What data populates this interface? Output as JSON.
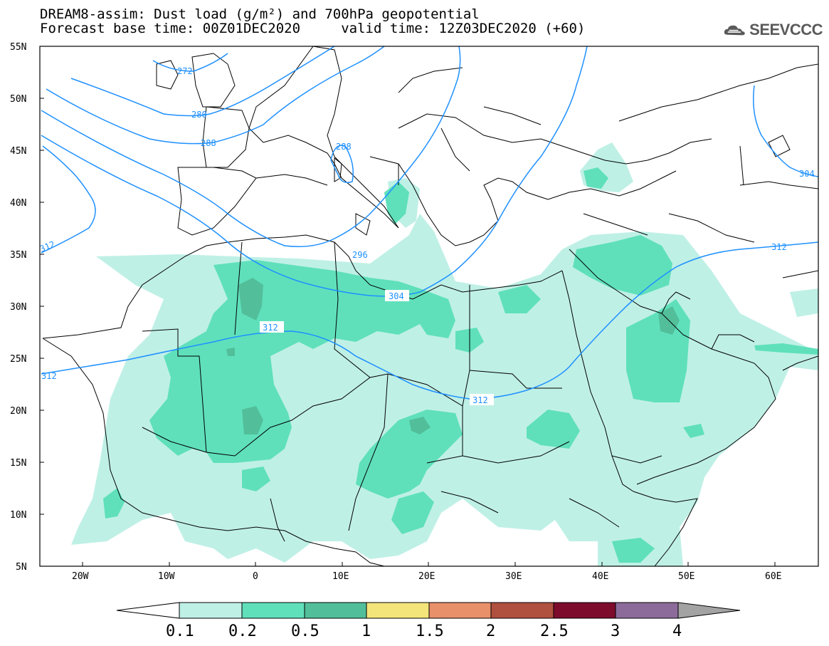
{
  "title": {
    "line1": "DREAM8-assim: Dust load (g/m²) and 700hPa geopotential",
    "line2": "Forecast base time: 00Z01DEC2020     valid time: 12Z03DEC2020 (+60)"
  },
  "logo": {
    "text": "SEEVCCC",
    "icon": "cloud-icon"
  },
  "map": {
    "lon_range": [
      -25,
      65
    ],
    "lat_range": [
      5,
      55
    ],
    "lat_labels": [
      "55N",
      "50N",
      "45N",
      "40N",
      "35N",
      "30N",
      "25N",
      "20N",
      "15N",
      "10N",
      "5N"
    ],
    "lon_labels": [
      "20W",
      "10W",
      "0",
      "10E",
      "20E",
      "30E",
      "40E",
      "50E",
      "60E"
    ],
    "contour_color": "#1e90ff",
    "contour_labels": [
      "272",
      "280",
      "288",
      "288",
      "296",
      "304",
      "304",
      "312",
      "312",
      "312",
      "312",
      "312"
    ]
  },
  "colorbar": {
    "labels": [
      "0.1",
      "0.2",
      "0.5",
      "1",
      "1.5",
      "2",
      "2.5",
      "3",
      "4"
    ],
    "colors": [
      "#ffffff",
      "#bff0e6",
      "#5fe0bb",
      "#52bf9a",
      "#f4e57a",
      "#e8906a",
      "#b0503f",
      "#7d0b2c",
      "#8c6b9b",
      "#a3a3a3"
    ]
  }
}
